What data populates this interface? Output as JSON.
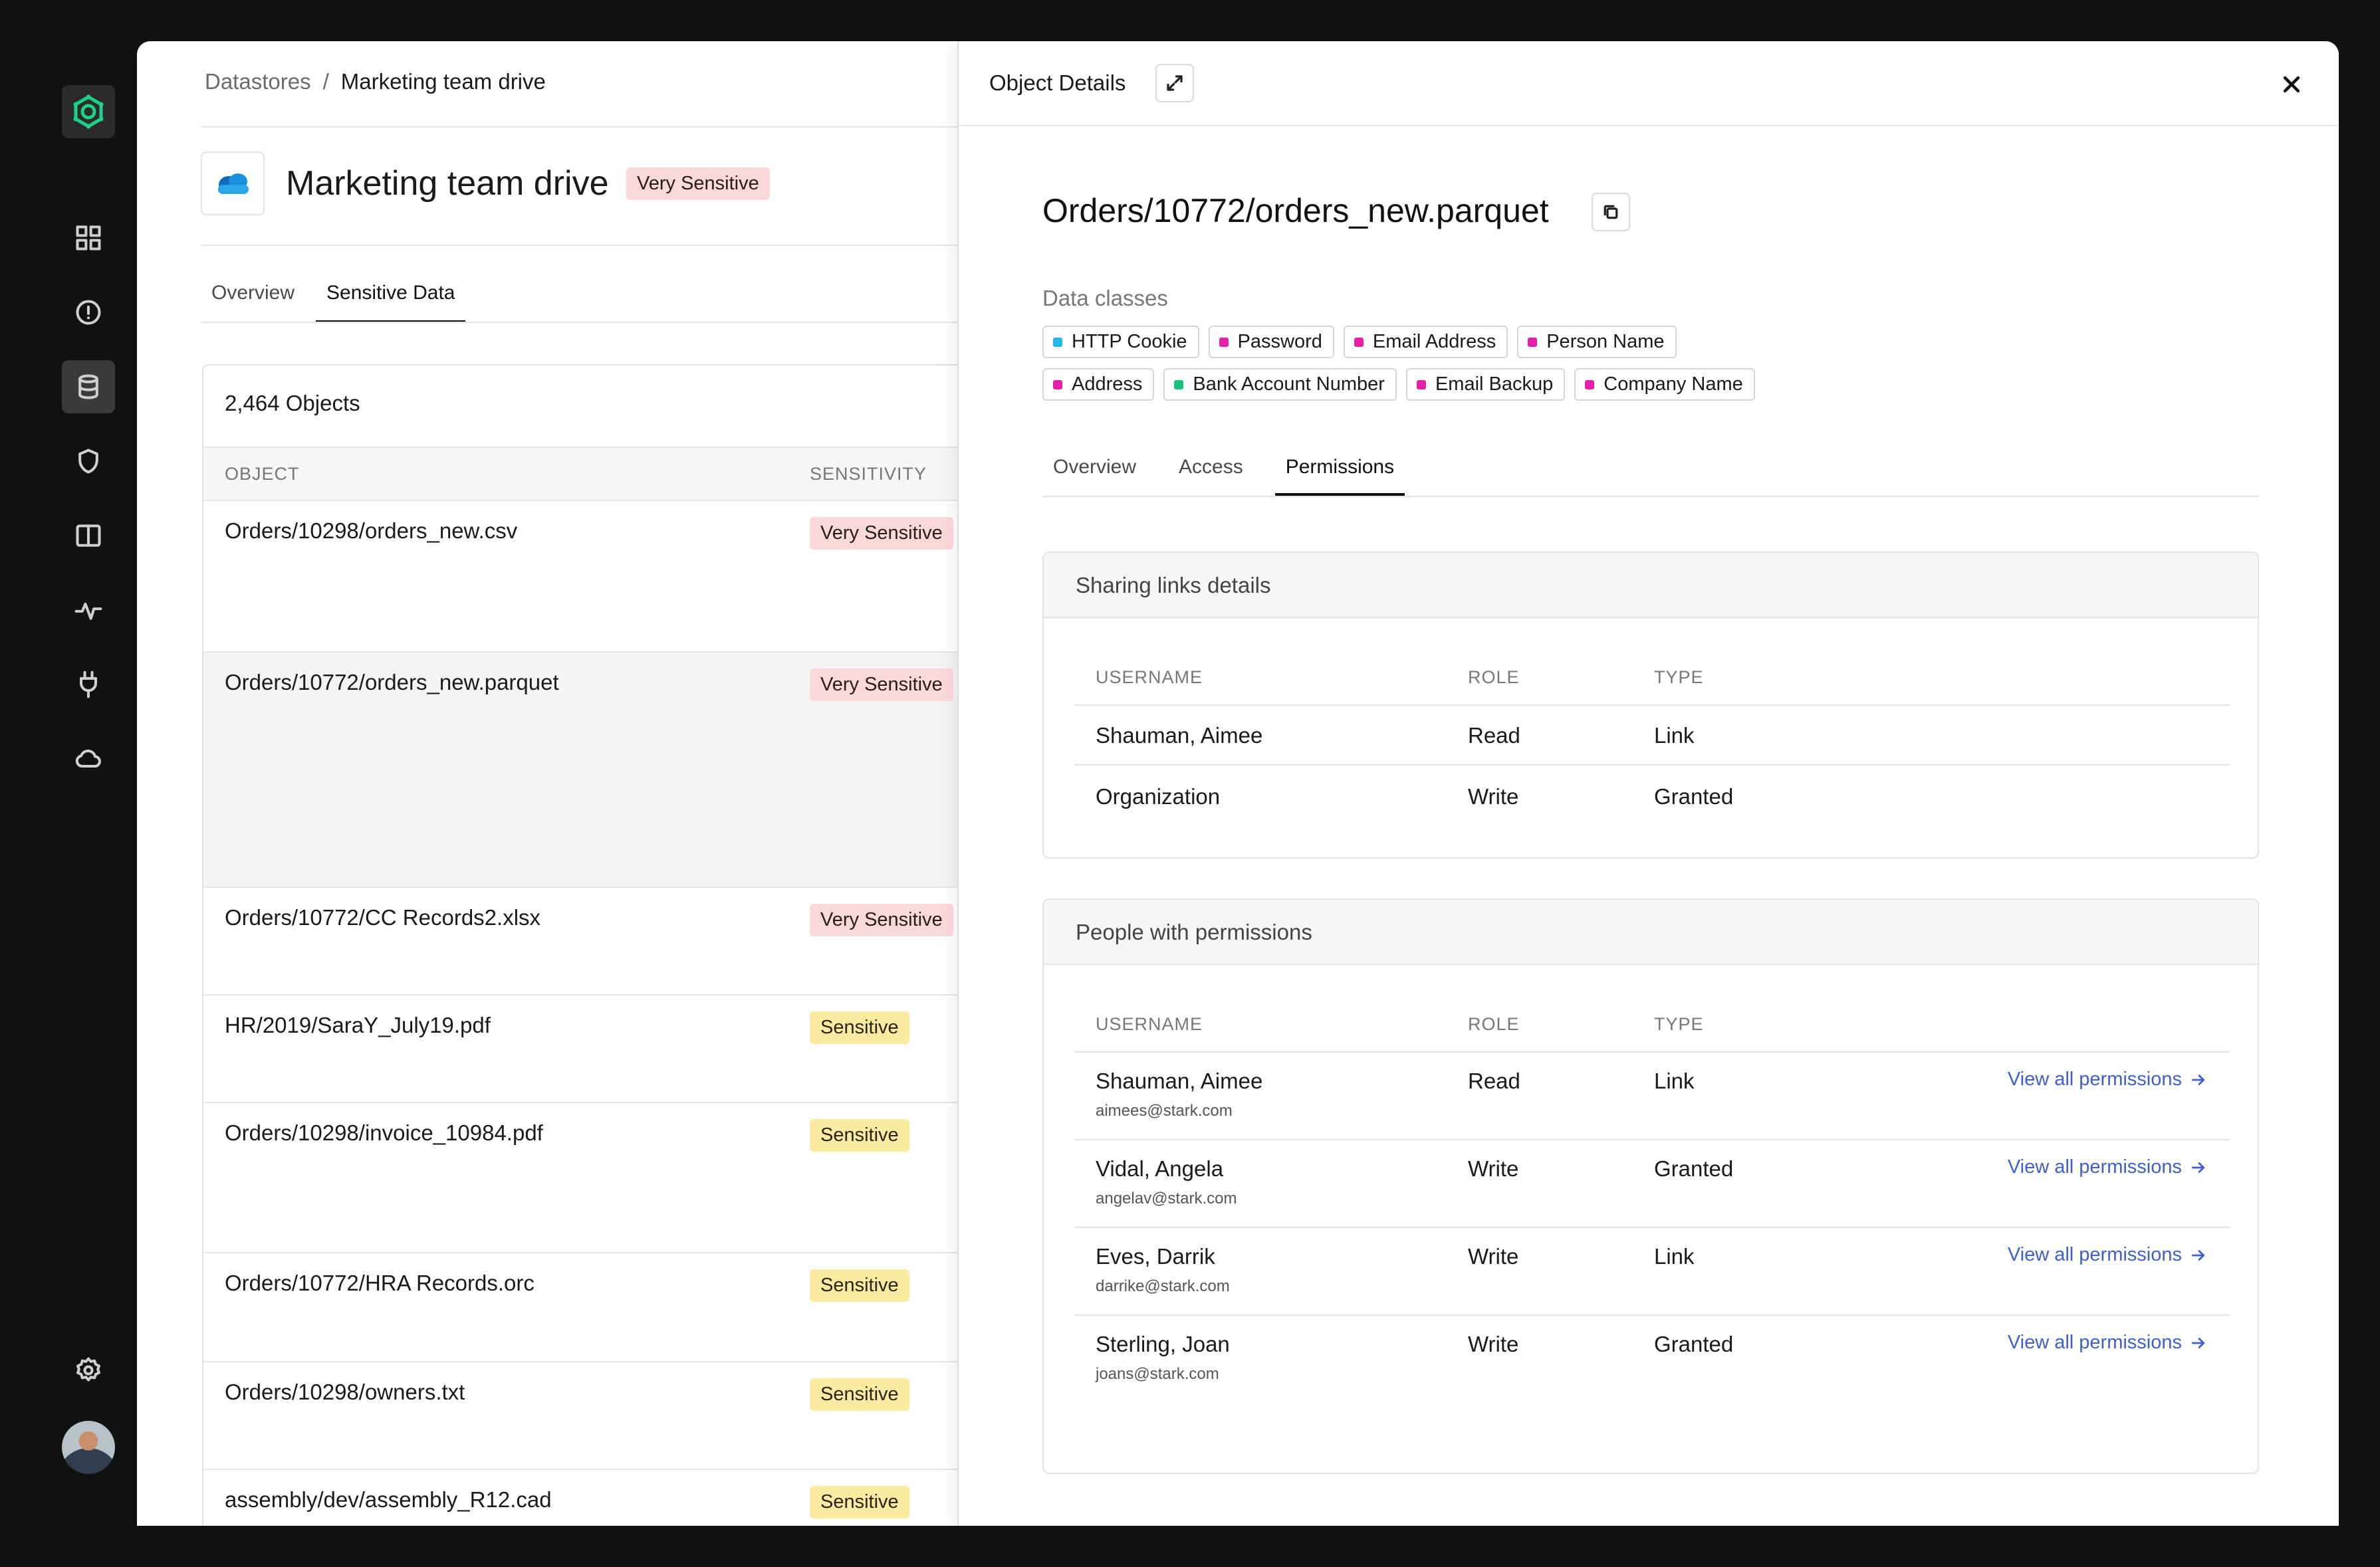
{
  "breadcrumb": {
    "root": "Datastores",
    "separator": "/",
    "current": "Marketing team drive"
  },
  "datastore": {
    "title": "Marketing team drive",
    "sensitivity": "Very Sensitive",
    "icon": "onedrive-cloud-icon"
  },
  "left_tabs": [
    {
      "label": "Overview",
      "active": false
    },
    {
      "label": "Sensitive Data",
      "active": true
    }
  ],
  "objects": {
    "count_label": "2,464 Objects",
    "columns": {
      "object": "OBJECT",
      "sensitivity": "SENSITIVITY"
    },
    "rows": [
      {
        "name": "Orders/10298/orders_new.csv",
        "sensitivity": "Very Sensitive",
        "level": "very"
      },
      {
        "name": "Orders/10772/orders_new.parquet",
        "sensitivity": "Very Sensitive",
        "level": "very",
        "selected": true
      },
      {
        "name": "Orders/10772/CC Records2.xlsx",
        "sensitivity": "Very Sensitive",
        "level": "very"
      },
      {
        "name": "HR/2019/SaraY_July19.pdf",
        "sensitivity": "Sensitive",
        "level": "sens"
      },
      {
        "name": "Orders/10298/invoice_10984.pdf",
        "sensitivity": "Sensitive",
        "level": "sens"
      },
      {
        "name": "Orders/10772/HRA Records.orc",
        "sensitivity": "Sensitive",
        "level": "sens"
      },
      {
        "name": "Orders/10298/owners.txt",
        "sensitivity": "Sensitive",
        "level": "sens"
      },
      {
        "name": "assembly/dev/assembly_R12.cad",
        "sensitivity": "Sensitive",
        "level": "sens"
      }
    ]
  },
  "panel": {
    "title": "Object Details",
    "object_name": "Orders/10772/orders_new.parquet",
    "data_classes_label": "Data classes",
    "data_classes": [
      {
        "label": "HTTP Cookie",
        "color": "#21b8e6"
      },
      {
        "label": "Password",
        "color": "#e61fa8"
      },
      {
        "label": "Email Address",
        "color": "#e61fa8"
      },
      {
        "label": "Person Name",
        "color": "#e61fa8"
      },
      {
        "label": "Address",
        "color": "#e61fa8"
      },
      {
        "label": "Bank Account Number",
        "color": "#17c27a"
      },
      {
        "label": "Email Backup",
        "color": "#e61fa8"
      },
      {
        "label": "Company Name",
        "color": "#e61fa8"
      }
    ],
    "tabs": [
      {
        "label": "Overview",
        "active": false
      },
      {
        "label": "Access",
        "active": false
      },
      {
        "label": "Permissions",
        "active": true
      }
    ],
    "sharing_links": {
      "title": "Sharing links details",
      "columns": {
        "username": "USERNAME",
        "role": "ROLE",
        "type": "TYPE"
      },
      "rows": [
        {
          "username": "Shauman, Aimee",
          "role": "Read",
          "type": "Link"
        },
        {
          "username": "Organization",
          "role": "Write",
          "type": "Granted"
        }
      ]
    },
    "people": {
      "title": "People with permissions",
      "columns": {
        "username": "USERNAME",
        "role": "ROLE",
        "type": "TYPE"
      },
      "link_label": "View all permissions",
      "rows": [
        {
          "username": "Shauman, Aimee",
          "email": "aimees@stark.com",
          "role": "Read",
          "type": "Link"
        },
        {
          "username": "Vidal, Angela",
          "email": "angelav@stark.com",
          "role": "Write",
          "type": "Granted"
        },
        {
          "username": "Eves, Darrik",
          "email": "darrike@stark.com",
          "role": "Write",
          "type": "Link"
        },
        {
          "username": "Sterling, Joan",
          "email": "joans@stark.com",
          "role": "Write",
          "type": "Granted"
        }
      ]
    }
  },
  "colors": {
    "accent": "#1bd18c",
    "link": "#3e5fd3",
    "very_sensitive_bg": "#fbd9da",
    "sensitive_bg": "#fbeba0"
  }
}
